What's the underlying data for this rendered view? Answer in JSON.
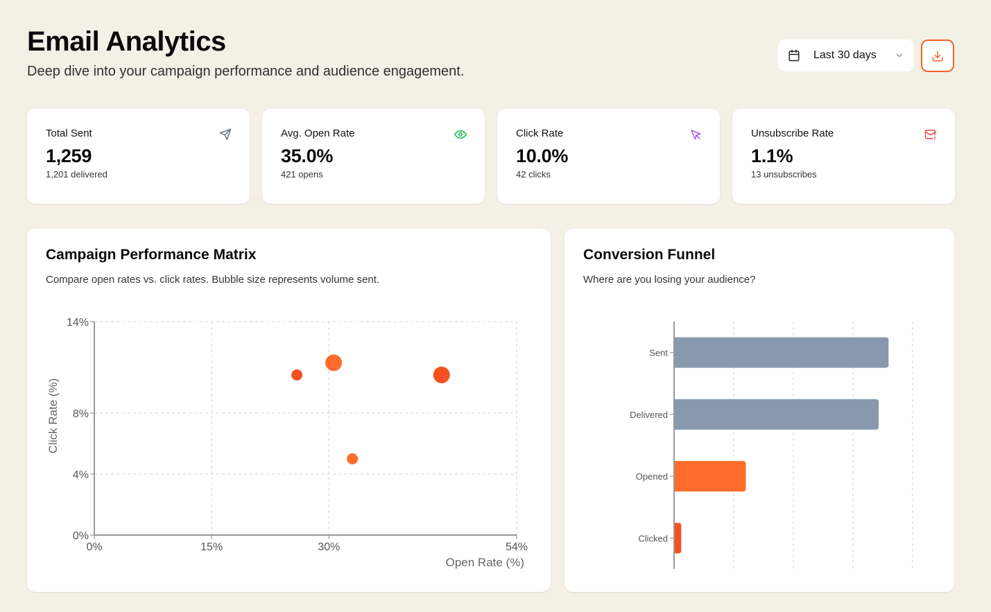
{
  "header": {
    "title": "Email Analytics",
    "subtitle": "Deep dive into your campaign performance and audience engagement.",
    "date_range": {
      "selected": "Last 30 days",
      "icon": "calendar-icon"
    },
    "download": {
      "icon": "download-icon"
    }
  },
  "colors": {
    "background": "#f3f0e5",
    "accent": "#f4622a",
    "accent_light": "#ff6b2b",
    "slate": "#8899ae",
    "green": "#22c55e",
    "purple": "#a855f7",
    "red": "#ef4444"
  },
  "kpis": [
    {
      "title": "Total Sent",
      "value": "1,259",
      "sub": "1,201 delivered",
      "icon": "send-icon",
      "icon_color": "#6b7280"
    },
    {
      "title": "Avg. Open Rate",
      "value": "35.0%",
      "sub": "421 opens",
      "icon": "eye-icon",
      "icon_color": "#22c55e"
    },
    {
      "title": "Click Rate",
      "value": "10.0%",
      "sub": "42 clicks",
      "icon": "cursor-icon",
      "icon_color": "#a855f7"
    },
    {
      "title": "Unsubscribe Rate",
      "value": "1.1%",
      "sub": "13 unsubscribes",
      "icon": "mail-alert-icon",
      "icon_color": "#ef4444"
    }
  ],
  "matrix": {
    "title": "Campaign Performance Matrix",
    "subtitle": "Compare open rates vs. click rates. Bubble size represents volume sent."
  },
  "funnel": {
    "title": "Conversion Funnel",
    "subtitle": "Where are you losing your audience?"
  },
  "chart_data": [
    {
      "type": "scatter",
      "title": "Campaign Performance Matrix",
      "xlabel": "Open Rate (%)",
      "ylabel": "Click Rate (%)",
      "xlim": [
        0,
        54
      ],
      "ylim": [
        0,
        14
      ],
      "xticks": [
        0,
        15,
        30,
        54
      ],
      "xtick_labels": [
        "0%",
        "15%",
        "30%",
        "54%"
      ],
      "yticks": [
        0,
        4,
        8,
        14
      ],
      "ytick_labels": [
        "0%",
        "4%",
        "8%",
        "14%"
      ],
      "grid": true,
      "points": [
        {
          "x": 25.9,
          "y": 10.5,
          "size": "small",
          "color": "#f4511e"
        },
        {
          "x": 30.6,
          "y": 11.3,
          "size": "large",
          "color": "#ff6b2b"
        },
        {
          "x": 44.4,
          "y": 10.5,
          "size": "large",
          "color": "#f4511e"
        },
        {
          "x": 33.0,
          "y": 5.0,
          "size": "small",
          "color": "#ff6b2b"
        }
      ]
    },
    {
      "type": "bar",
      "orientation": "horizontal",
      "title": "Conversion Funnel",
      "categories": [
        "Sent",
        "Delivered",
        "Opened",
        "Clicked"
      ],
      "values": [
        1259,
        1201,
        421,
        42
      ],
      "colors": [
        "#8899ae",
        "#8899ae",
        "#ff6b2b",
        "#f4511e"
      ],
      "xlim": [
        0,
        1400
      ],
      "xticks": [
        0,
        350,
        700,
        1050,
        1400
      ],
      "grid": true
    }
  ]
}
